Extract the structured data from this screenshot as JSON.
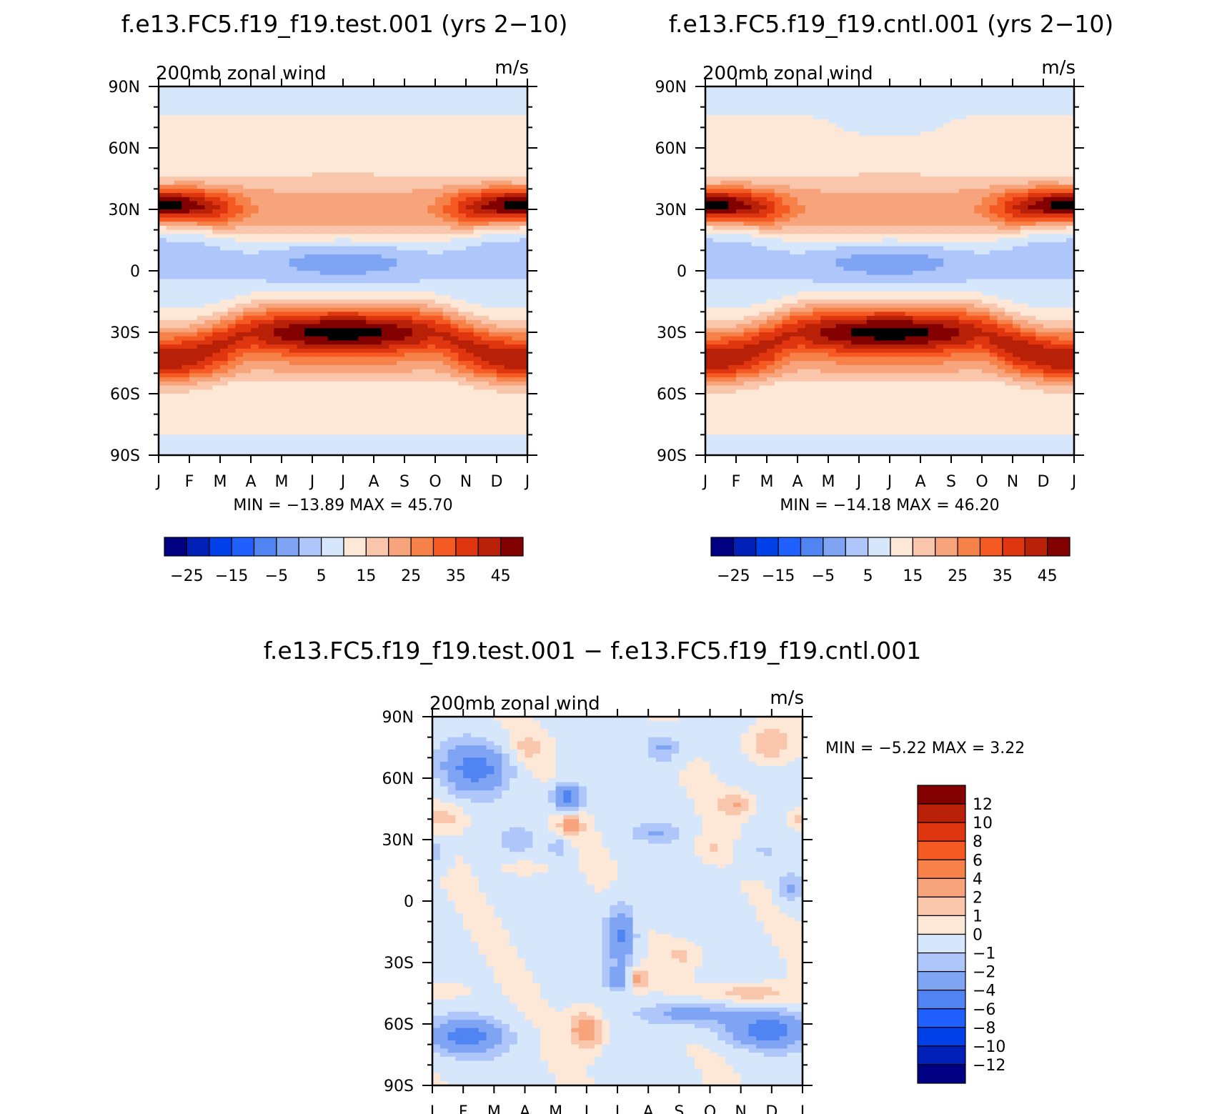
{
  "chart_data": [
    {
      "type": "heatmap",
      "title": "f.e13.FC5.f19_f19.test.001 (yrs 2−10)",
      "subtitle": "200mb zonal wind",
      "units": "m/s",
      "x_ticks": [
        "J",
        "F",
        "M",
        "A",
        "M",
        "J",
        "J",
        "A",
        "S",
        "O",
        "N",
        "D",
        "J"
      ],
      "y_ticks": [
        "90N",
        "60N",
        "30N",
        "0",
        "30S",
        "60S",
        "90S"
      ],
      "stats": "MIN = −13.89 MAX =   45.70",
      "min": -13.89,
      "max": 45.7,
      "colorbar_labels": [
        "−25",
        "−15",
        "−5",
        "5",
        "15",
        "25",
        "35",
        "45"
      ]
    },
    {
      "type": "heatmap",
      "title": "f.e13.FC5.f19_f19.cntl.001 (yrs 2−10)",
      "subtitle": "200mb zonal wind",
      "units": "m/s",
      "x_ticks": [
        "J",
        "F",
        "M",
        "A",
        "M",
        "J",
        "J",
        "A",
        "S",
        "O",
        "N",
        "D",
        "J"
      ],
      "y_ticks": [
        "90N",
        "60N",
        "30N",
        "0",
        "30S",
        "60S",
        "90S"
      ],
      "stats": "MIN = −14.18 MAX =   46.20",
      "min": -14.18,
      "max": 46.2,
      "colorbar_labels": [
        "−25",
        "−15",
        "−5",
        "5",
        "15",
        "25",
        "35",
        "45"
      ]
    },
    {
      "type": "heatmap",
      "title": "f.e13.FC5.f19_f19.test.001 − f.e13.FC5.f19_f19.cntl.001",
      "subtitle": "200mb zonal wind",
      "units": "m/s",
      "x_ticks": [
        "J",
        "F",
        "M",
        "A",
        "M",
        "J",
        "J",
        "A",
        "S",
        "O",
        "N",
        "D",
        "J"
      ],
      "y_ticks": [
        "90N",
        "60N",
        "30N",
        "0",
        "30S",
        "60S",
        "90S"
      ],
      "stats": "MIN =   −5.22 MAX =    3.22",
      "min": -5.22,
      "max": 3.22,
      "colorbar_labels": [
        "12",
        "10",
        "8",
        "6",
        "4",
        "2",
        "1",
        "0",
        "−1",
        "−2",
        "−4",
        "−6",
        "−8",
        "−10",
        "−12"
      ]
    }
  ],
  "colors": {
    "main_scale": [
      "#000083",
      "#0020b8",
      "#0040e8",
      "#2060ff",
      "#4f84f2",
      "#7fa4f4",
      "#aec6fa",
      "#d6e6fb",
      "#fde8d8",
      "#f9c6ac",
      "#f7a47c",
      "#f6824a",
      "#f55a22",
      "#e03610",
      "#b82008",
      "#820000"
    ],
    "diff_scale": [
      "#820000",
      "#b82008",
      "#e03610",
      "#f55a22",
      "#f6824a",
      "#f7a47c",
      "#f9c6ac",
      "#fde8d8",
      "#d6e6fb",
      "#aec6fa",
      "#7fa4f4",
      "#4f84f2",
      "#2060ff",
      "#0040e8",
      "#0020b8",
      "#000083"
    ]
  }
}
